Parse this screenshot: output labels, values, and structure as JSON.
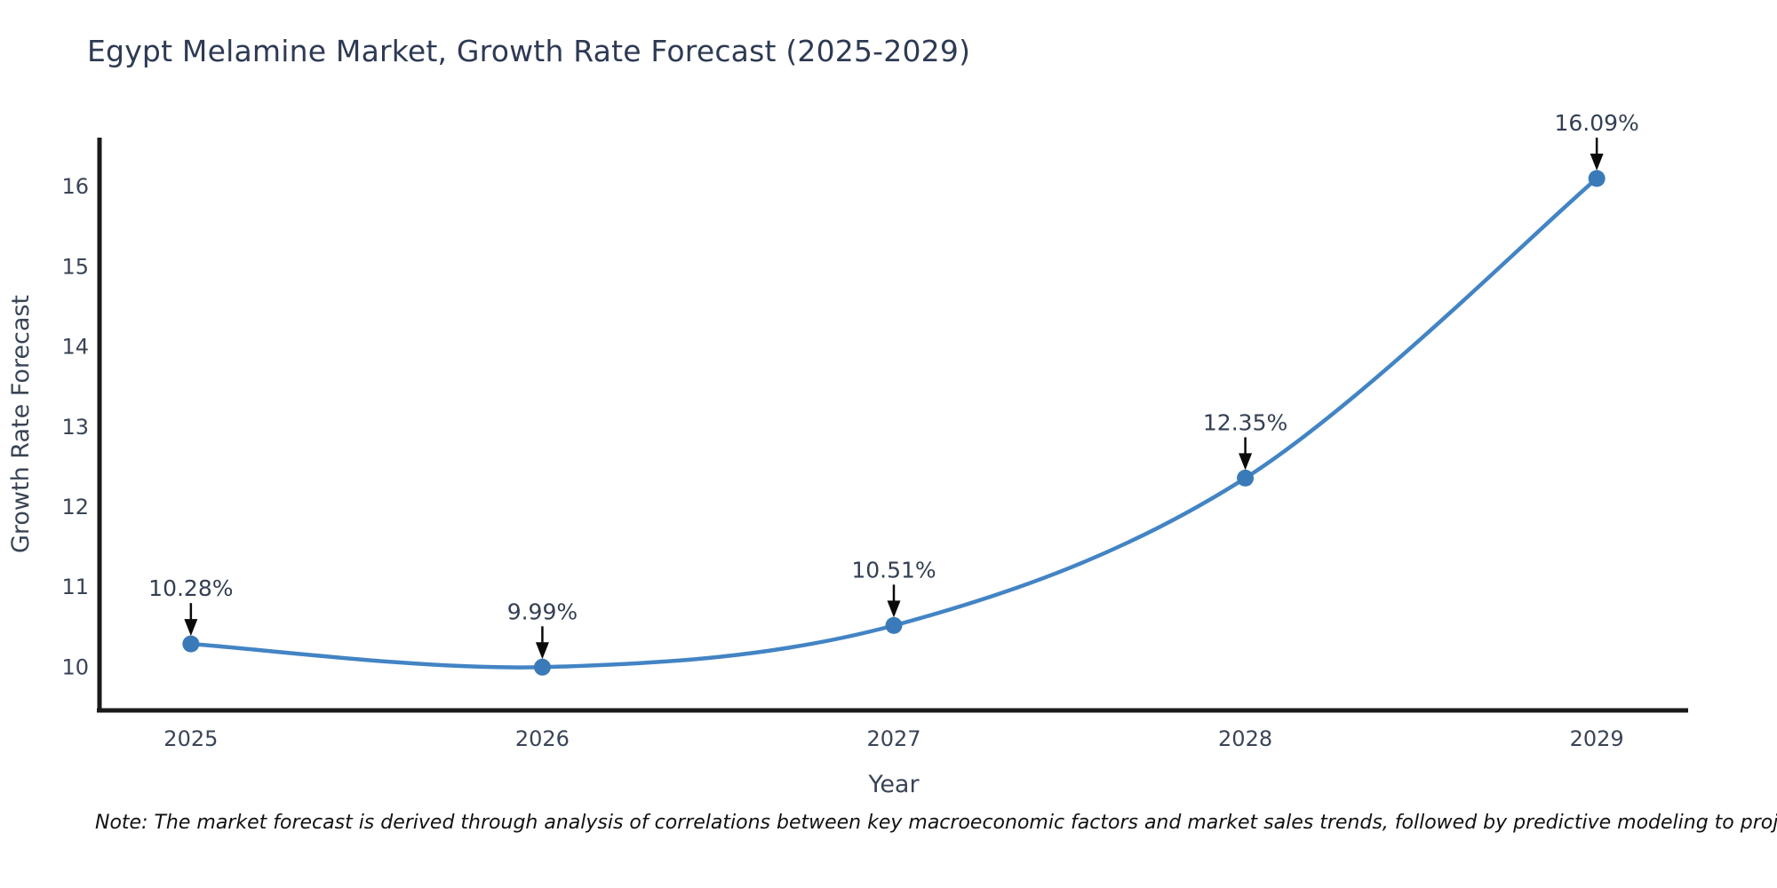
{
  "title": "Egypt Melamine Market, Growth Rate Forecast (2025-2029)",
  "note": "Note: The market forecast is derived through analysis of correlations between key macroeconomic factors and market sales trends, followed by predictive modeling to project future sales",
  "chart_data": {
    "type": "line",
    "x": [
      2025,
      2026,
      2027,
      2028,
      2029
    ],
    "values": [
      10.28,
      9.99,
      10.51,
      12.35,
      16.09
    ],
    "point_labels": [
      "10.28%",
      "9.99%",
      "10.51%",
      "12.35%",
      "16.09%"
    ],
    "x_ticks": [
      "2025",
      "2026",
      "2027",
      "2028",
      "2029"
    ],
    "y_ticks": [
      10,
      11,
      12,
      13,
      14,
      15,
      16
    ],
    "xlabel": "Year",
    "ylabel": "Growth Rate Forecast",
    "xlim": [
      2024.74,
      2029.26
    ],
    "ylim": [
      9.45,
      16.6
    ],
    "grid": false,
    "legend": null,
    "colors": {
      "line": "#4284c4",
      "marker": "#3a7ab8",
      "annotation_text": "#333f52",
      "arrow": "#0a0a0a",
      "tick_text": "#3a4456",
      "axis_title_text": "#3a4456",
      "spine": "#1a1a1a"
    }
  }
}
